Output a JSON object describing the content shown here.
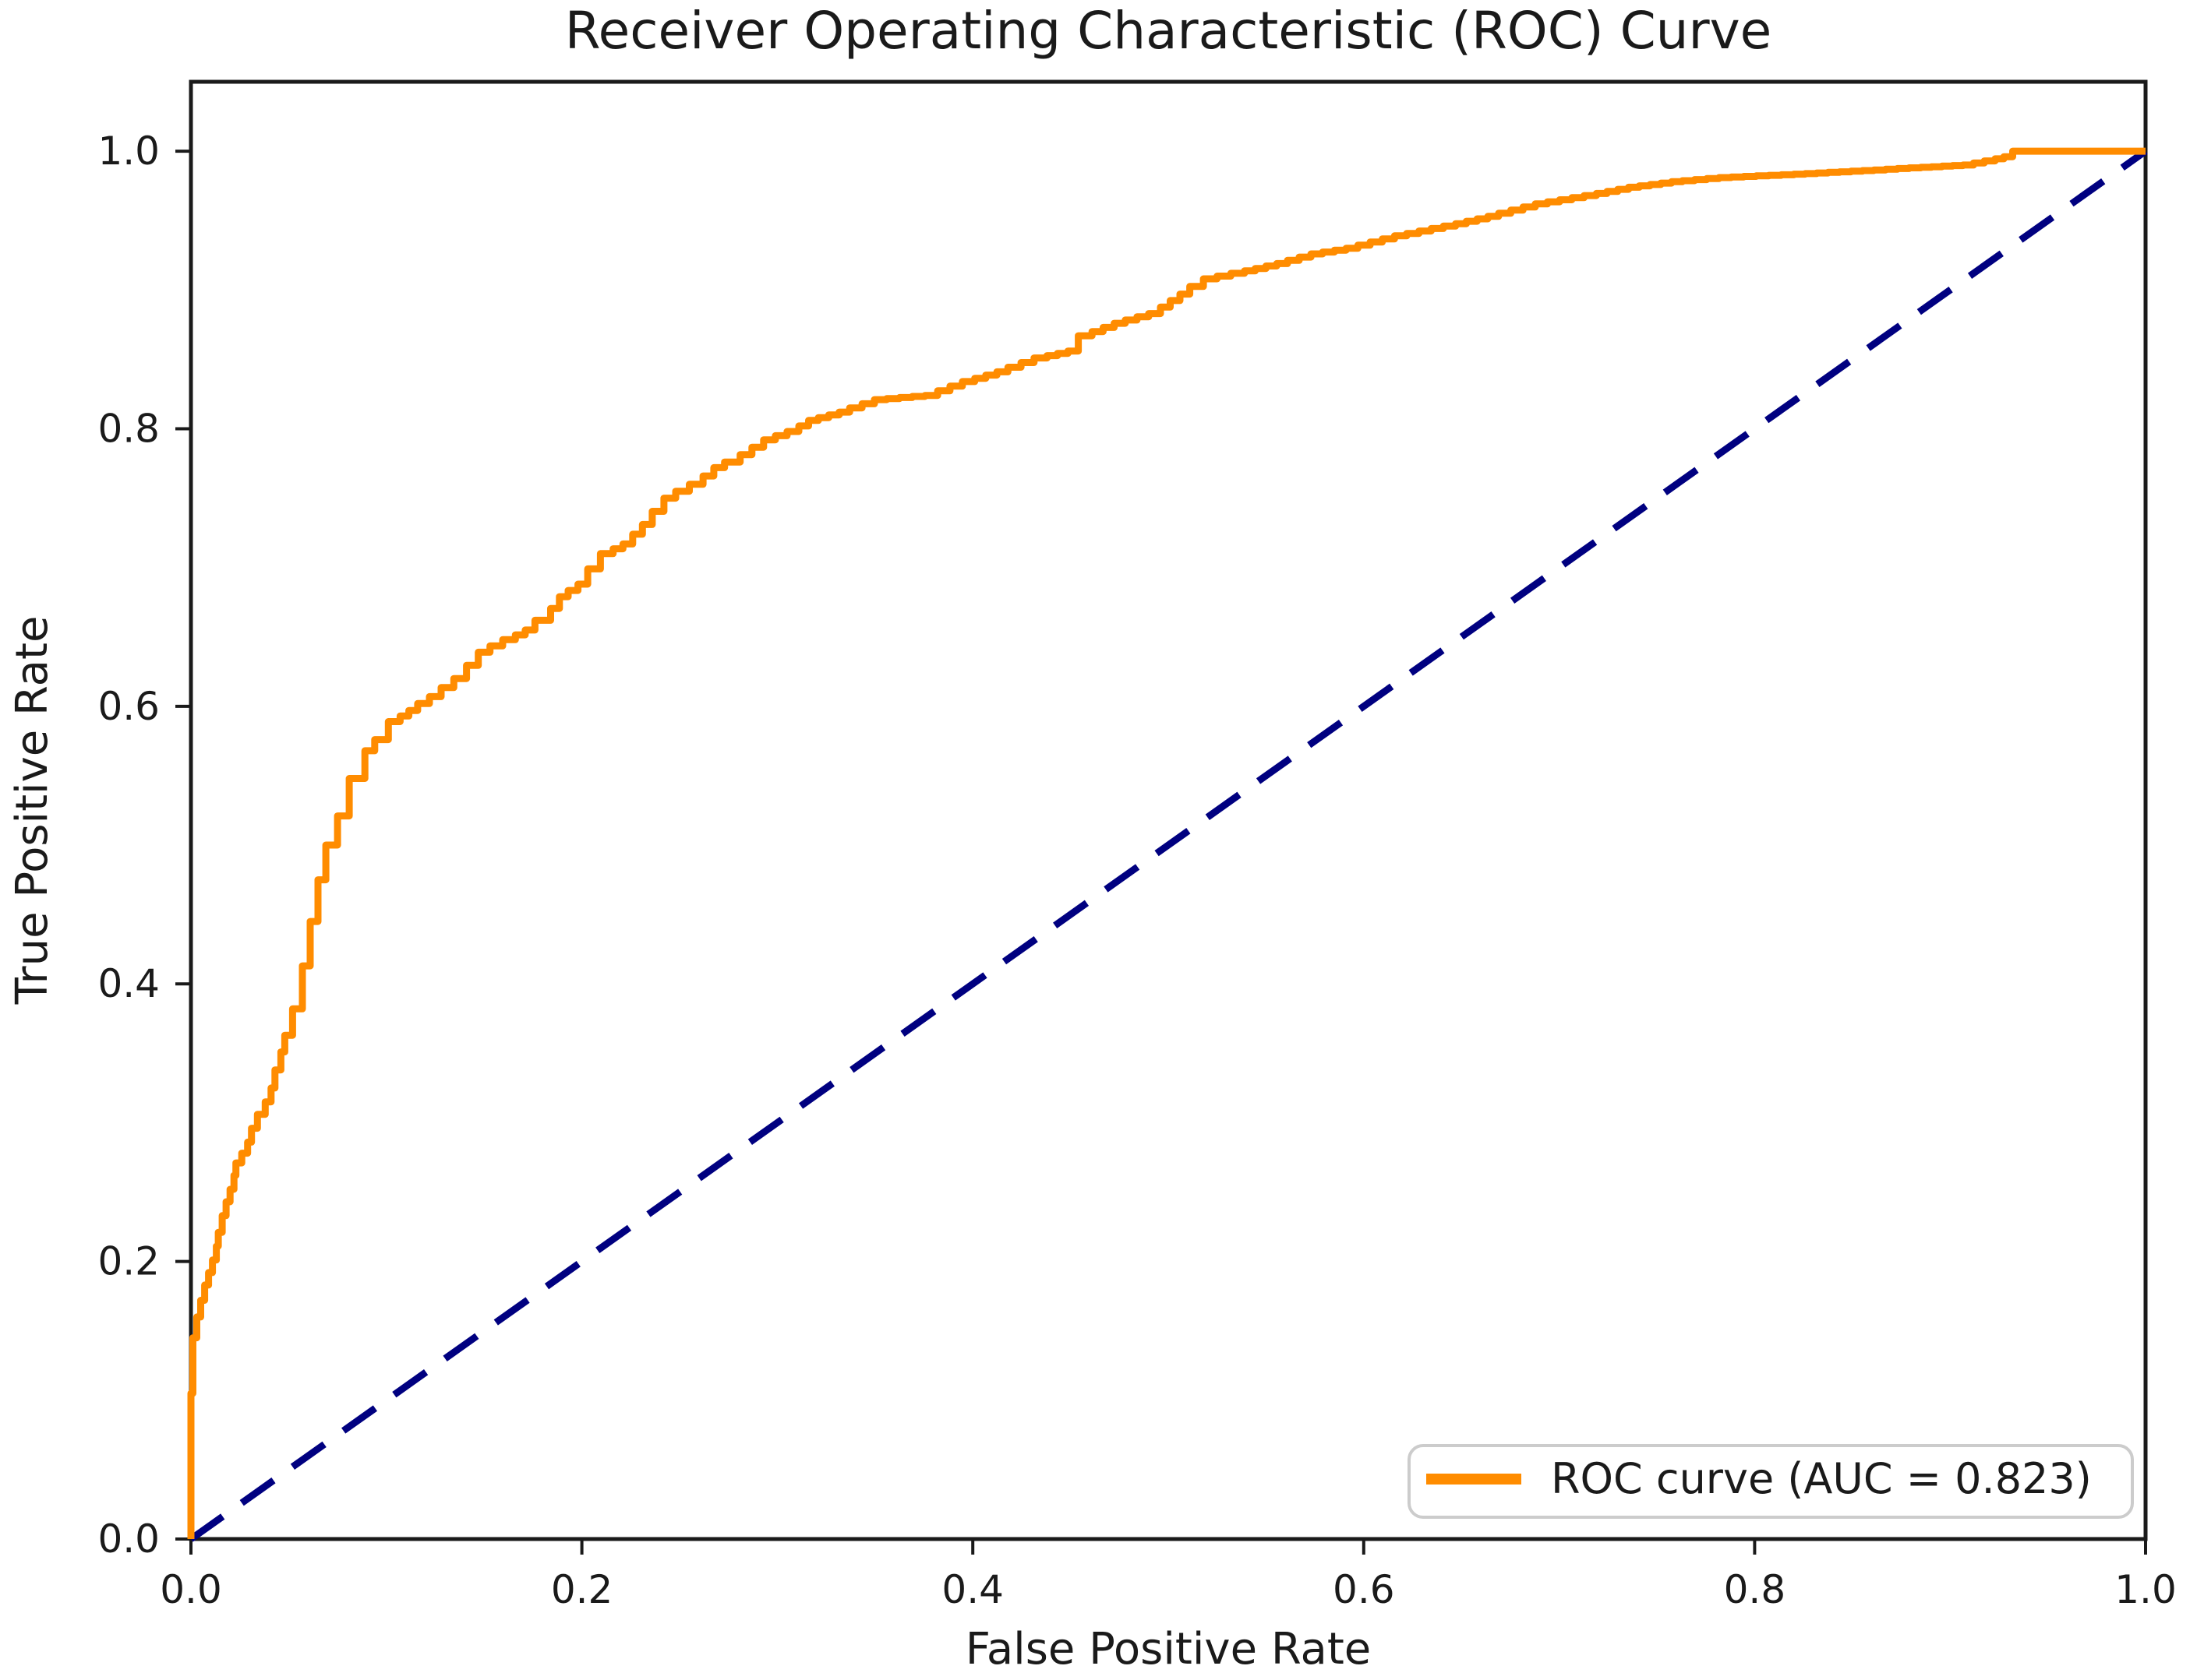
{
  "figure": {
    "title": "Receiver Operating Characteristic (ROC) Curve"
  },
  "axes": {
    "xlabel": "False Positive Rate",
    "ylabel": "True Positive Rate",
    "x_tick_labels": [
      "0.0",
      "0.2",
      "0.4",
      "0.6",
      "0.8",
      "1.0"
    ],
    "y_tick_labels": [
      "0.0",
      "0.2",
      "0.4",
      "0.6",
      "0.8",
      "1.0"
    ],
    "x_tick_values": [
      0.0,
      0.2,
      0.4,
      0.6,
      0.8,
      1.0
    ],
    "y_tick_values": [
      0.0,
      0.2,
      0.4,
      0.6,
      0.8,
      1.0
    ],
    "xlim": [
      0.0,
      1.0
    ],
    "ylim": [
      0.0,
      1.05
    ]
  },
  "legend": {
    "label": "ROC curve (AUC = 0.823)",
    "position": "lower right"
  },
  "metrics": {
    "auc": 0.823
  },
  "colors": {
    "roc_curve": "#FF8C00",
    "chance_line": "#000080",
    "spine": "#1a1a1a",
    "tick": "#1a1a1a",
    "text": "#1a1a1a",
    "legend_border": "#cccccc",
    "legend_fill": "#ffffff",
    "background": "#ffffff"
  },
  "chart_data": {
    "type": "line",
    "title": "Receiver Operating Characteristic (ROC) Curve",
    "xlabel": "False Positive Rate",
    "ylabel": "True Positive Rate",
    "xlim": [
      0.0,
      1.0
    ],
    "ylim": [
      0.0,
      1.05
    ],
    "grid": false,
    "legend_position": "lower right",
    "series": [
      {
        "name": "ROC curve (AUC = 0.823)",
        "color": "#FF8C00",
        "style": "solid-steps",
        "points": [
          [
            0.0,
            0.0
          ],
          [
            0.001,
            0.105
          ],
          [
            0.003,
            0.145
          ],
          [
            0.005,
            0.16
          ],
          [
            0.007,
            0.172
          ],
          [
            0.009,
            0.183
          ],
          [
            0.011,
            0.192
          ],
          [
            0.013,
            0.201
          ],
          [
            0.014,
            0.211
          ],
          [
            0.016,
            0.221
          ],
          [
            0.018,
            0.233
          ],
          [
            0.02,
            0.243
          ],
          [
            0.022,
            0.252
          ],
          [
            0.023,
            0.262
          ],
          [
            0.026,
            0.271
          ],
          [
            0.029,
            0.278
          ],
          [
            0.031,
            0.286
          ],
          [
            0.034,
            0.296
          ],
          [
            0.038,
            0.306
          ],
          [
            0.041,
            0.315
          ],
          [
            0.043,
            0.325
          ],
          [
            0.046,
            0.338
          ],
          [
            0.048,
            0.351
          ],
          [
            0.052,
            0.363
          ],
          [
            0.057,
            0.382
          ],
          [
            0.061,
            0.413
          ],
          [
            0.065,
            0.445
          ],
          [
            0.069,
            0.475
          ],
          [
            0.075,
            0.5
          ],
          [
            0.081,
            0.521
          ],
          [
            0.089,
            0.548
          ],
          [
            0.094,
            0.568
          ],
          [
            0.101,
            0.576
          ],
          [
            0.107,
            0.589
          ],
          [
            0.116,
            0.597
          ],
          [
            0.128,
            0.607
          ],
          [
            0.141,
            0.62
          ],
          [
            0.153,
            0.639
          ],
          [
            0.166,
            0.648
          ],
          [
            0.176,
            0.655
          ],
          [
            0.184,
            0.662
          ],
          [
            0.193,
            0.679
          ],
          [
            0.203,
            0.688
          ],
          [
            0.216,
            0.71
          ],
          [
            0.226,
            0.717
          ],
          [
            0.236,
            0.731
          ],
          [
            0.248,
            0.75
          ],
          [
            0.262,
            0.76
          ],
          [
            0.273,
            0.772
          ],
          [
            0.281,
            0.776
          ],
          [
            0.299,
            0.792
          ],
          [
            0.311,
            0.798
          ],
          [
            0.321,
            0.806
          ],
          [
            0.337,
            0.812
          ],
          [
            0.356,
            0.821
          ],
          [
            0.382,
            0.824
          ],
          [
            0.401,
            0.834
          ],
          [
            0.418,
            0.841
          ],
          [
            0.438,
            0.851
          ],
          [
            0.454,
            0.856
          ],
          [
            0.461,
            0.867
          ],
          [
            0.478,
            0.876
          ],
          [
            0.496,
            0.883
          ],
          [
            0.511,
            0.897
          ],
          [
            0.525,
            0.908
          ],
          [
            0.539,
            0.912
          ],
          [
            0.561,
            0.919
          ],
          [
            0.579,
            0.926
          ],
          [
            0.597,
            0.93
          ],
          [
            0.622,
            0.939
          ],
          [
            0.647,
            0.946
          ],
          [
            0.669,
            0.953
          ],
          [
            0.694,
            0.962
          ],
          [
            0.719,
            0.968
          ],
          [
            0.741,
            0.974
          ],
          [
            0.763,
            0.978
          ],
          [
            0.788,
            0.981
          ],
          [
            0.82,
            0.983
          ],
          [
            0.861,
            0.986
          ],
          [
            0.885,
            0.988
          ],
          [
            0.912,
            0.99
          ],
          [
            0.923,
            0.993
          ],
          [
            0.932,
            0.996
          ],
          [
            0.94,
            1.0
          ],
          [
            1.0,
            1.0
          ]
        ]
      },
      {
        "name": "Chance diagonal",
        "color": "#000080",
        "style": "dashed",
        "points": [
          [
            0.0,
            0.0
          ],
          [
            1.0,
            1.0
          ]
        ]
      }
    ]
  }
}
